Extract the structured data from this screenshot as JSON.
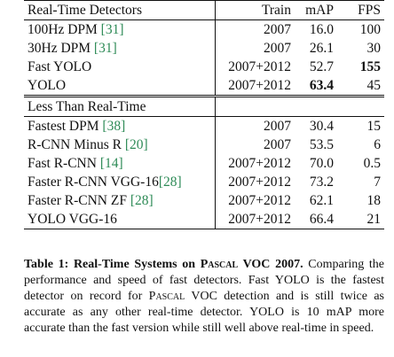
{
  "table": {
    "sections": [
      {
        "header": {
          "name": "Real-Time Detectors",
          "train": "Train",
          "map": "mAP",
          "fps": "FPS"
        },
        "rows": [
          {
            "name": "100Hz DPM ",
            "cite": "[31]",
            "train": "2007",
            "map": "16.0",
            "fps": "100",
            "bold_map": false,
            "bold_fps": false
          },
          {
            "name": "30Hz DPM ",
            "cite": "[31]",
            "train": "2007",
            "map": "26.1",
            "fps": "30",
            "bold_map": false,
            "bold_fps": false
          },
          {
            "name": "Fast YOLO",
            "cite": "",
            "train": "2007+2012",
            "map": "52.7",
            "fps": "155",
            "bold_map": false,
            "bold_fps": true
          },
          {
            "name": "YOLO",
            "cite": "",
            "train": "2007+2012",
            "map": "63.4",
            "fps": "45",
            "bold_map": true,
            "bold_fps": false
          }
        ]
      },
      {
        "header": {
          "name": "Less Than Real-Time",
          "train": "",
          "map": "",
          "fps": ""
        },
        "rows": [
          {
            "name": "Fastest DPM ",
            "cite": "[38]",
            "train": "2007",
            "map": "30.4",
            "fps": "15"
          },
          {
            "name": "R-CNN Minus R ",
            "cite": "[20]",
            "train": "2007",
            "map": "53.5",
            "fps": "6"
          },
          {
            "name": "Fast R-CNN ",
            "cite": "[14]",
            "train": "2007+2012",
            "map": "70.0",
            "fps": "0.5"
          },
          {
            "name": "Faster R-CNN VGG-16",
            "cite": "[28]",
            "train": "2007+2012",
            "map": "73.2",
            "fps": "7"
          },
          {
            "name": "Faster R-CNN ZF ",
            "cite": "[28]",
            "train": "2007+2012",
            "map": "62.1",
            "fps": "18"
          },
          {
            "name": "YOLO VGG-16",
            "cite": "",
            "train": "2007+2012",
            "map": "66.4",
            "fps": "21"
          }
        ]
      }
    ]
  },
  "caption": {
    "label": "Table 1:",
    "title_a": " Real-Time Systems on ",
    "title_sc": "Pascal",
    "title_b": " VOC 2007.",
    "text_a": " Comparing the performance and speed of fast detectors. Fast YOLO is the fastest detector on record for ",
    "text_sc": "Pascal",
    "text_b": " VOC detection and is still twice as accurate as any other real-time detector. YOLO is 10 mAP more accurate than the fast version while still well above real-time in speed."
  },
  "colors": {
    "citation": "#2e8b57",
    "text": "#111111"
  }
}
